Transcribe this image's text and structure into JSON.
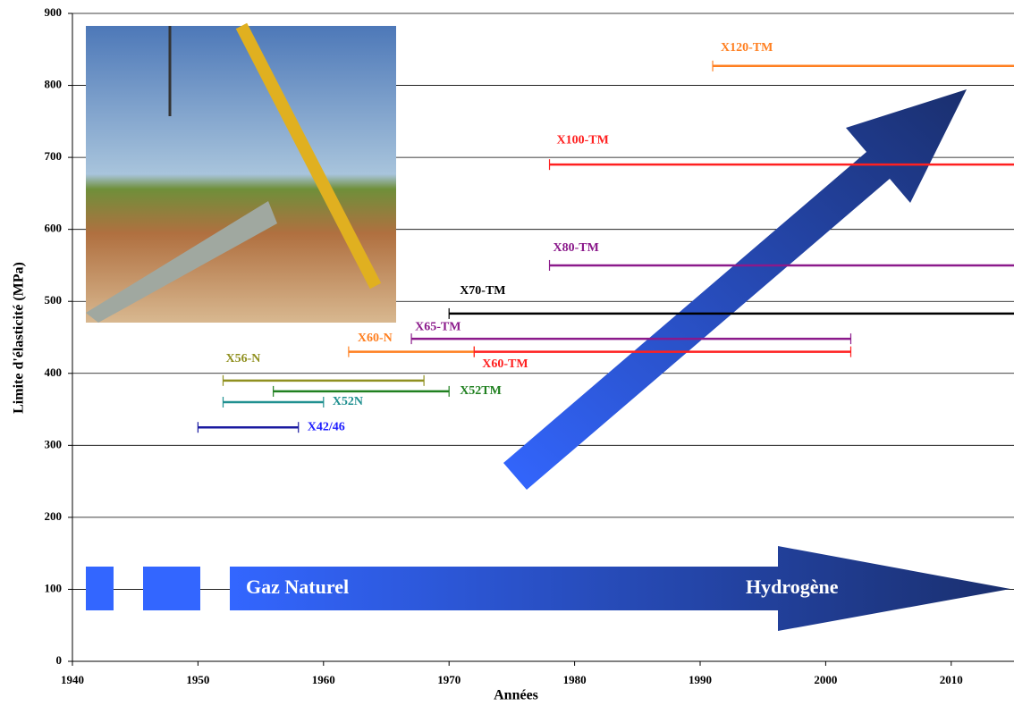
{
  "chart_data": {
    "type": "range",
    "xlabel": "Années",
    "ylabel": "Limite d'élasticité (MPa)",
    "xlim": [
      1940,
      2015
    ],
    "ylim": [
      0,
      900
    ],
    "xticks": [
      1940,
      1950,
      1960,
      1970,
      1980,
      1990,
      2000,
      2010
    ],
    "yticks": [
      0,
      100,
      200,
      300,
      400,
      500,
      600,
      700,
      800,
      900
    ],
    "grid": true,
    "annotations": [
      "Gaz Naturel",
      "Hydrogène"
    ],
    "series": [
      {
        "name": "X42/46",
        "color": "#1a1aa0",
        "label_color": "#2020ff",
        "x": [
          1950,
          1958
        ],
        "values": [
          325,
          325
        ]
      },
      {
        "name": "X52N",
        "color": "#209090",
        "label_color": "#209090",
        "x": [
          1952,
          1960
        ],
        "values": [
          360,
          360
        ]
      },
      {
        "name": "X56-N",
        "color": "#909020",
        "label_color": "#909020",
        "x": [
          1952,
          1968
        ],
        "values": [
          390,
          390
        ]
      },
      {
        "name": "X52TM",
        "color": "#208020",
        "label_color": "#208020",
        "x": [
          1956,
          1970
        ],
        "values": [
          375,
          375
        ]
      },
      {
        "name": "X60-N",
        "color": "#ff7f20",
        "label_color": "#ff7f20",
        "x": [
          1962,
          1972
        ],
        "values": [
          430,
          430
        ]
      },
      {
        "name": "X60-TM",
        "color": "#ff2020",
        "label_color": "#ff2020",
        "x": [
          1972,
          2002
        ],
        "values": [
          430,
          430
        ]
      },
      {
        "name": "X65-TM",
        "color": "#8b1a8b",
        "label_color": "#8b1a8b",
        "x": [
          1967,
          2002
        ],
        "values": [
          448,
          448
        ]
      },
      {
        "name": "X70-TM",
        "color": "#000000",
        "label_color": "#000000",
        "x": [
          1970,
          2015
        ],
        "values": [
          483,
          483
        ]
      },
      {
        "name": "X80-TM",
        "color": "#8b1a8b",
        "label_color": "#8b1a8b",
        "x": [
          1978,
          2015
        ],
        "values": [
          550,
          550
        ]
      },
      {
        "name": "X100-TM",
        "color": "#ff2020",
        "label_color": "#ff2020",
        "x": [
          1978,
          2015
        ],
        "values": [
          690,
          690
        ]
      },
      {
        "name": "X120-TM",
        "color": "#ff7f20",
        "label_color": "#ff7f20",
        "x": [
          1991,
          2015
        ],
        "values": [
          827,
          827
        ]
      }
    ]
  }
}
